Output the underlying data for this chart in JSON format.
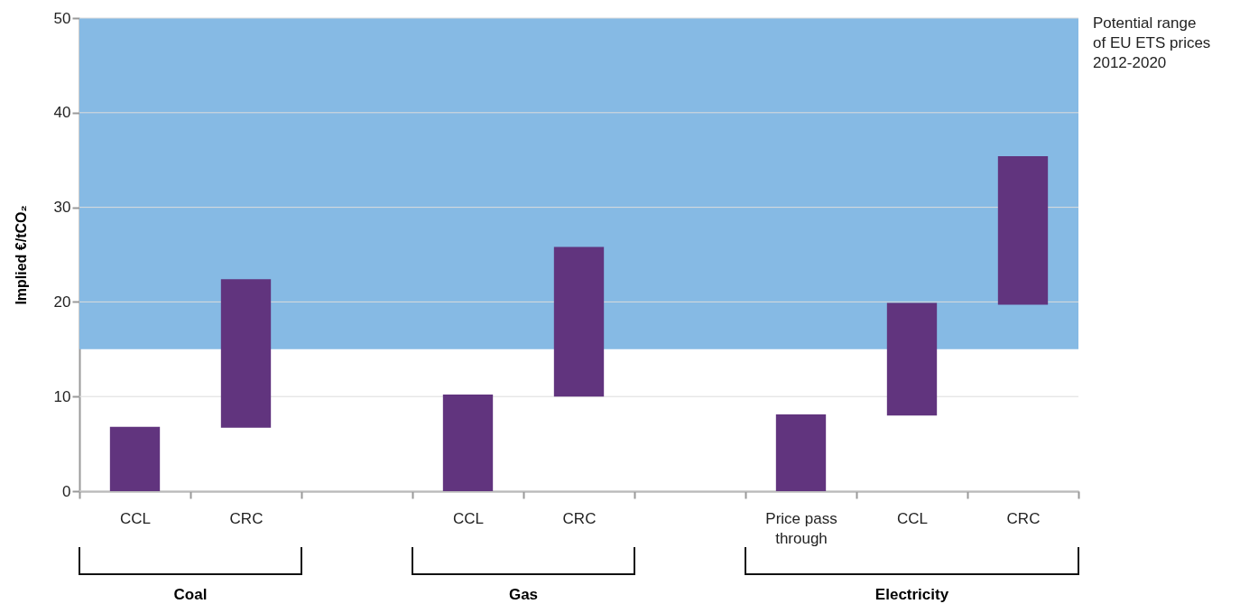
{
  "chart_data": {
    "type": "bar",
    "ylabel": "Implied €/tCO₂",
    "categories": [
      "CCL",
      "CRC",
      null,
      "CCL",
      "CRC",
      null,
      "Price pass through",
      "CCL",
      "CRC"
    ],
    "values": [
      6.8,
      15.7,
      null,
      10.2,
      15.8,
      null,
      8.1,
      11.9,
      15.7
    ],
    "base": [
      0,
      6.7,
      null,
      0,
      10.0,
      null,
      0,
      8.0,
      19.7
    ],
    "color": "#61347e",
    "ylim": [
      0,
      50
    ],
    "yticks": [
      0,
      10,
      20,
      30,
      40,
      50
    ],
    "grid": "y",
    "bands": [
      {
        "axis": "y",
        "from": 15,
        "to": 50,
        "label": "Potential range of EU ETS prices 2012-2020",
        "color": "#86bae4"
      }
    ],
    "annotations": [
      "Coal",
      "Gas",
      "Electricity"
    ]
  }
}
